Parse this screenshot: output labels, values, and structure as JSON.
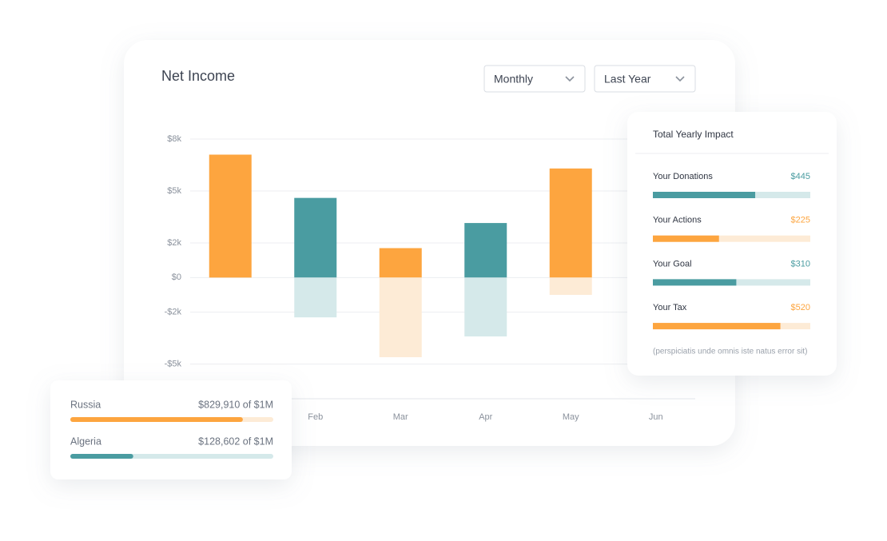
{
  "header": {
    "title": "Net Income",
    "filters": [
      "Monthly",
      "Last Year"
    ]
  },
  "chart_data": {
    "type": "bar",
    "categories": [
      null,
      "Feb",
      "Mar",
      "Apr",
      "May",
      "Jun"
    ],
    "series": [
      {
        "colors": [
          "#fda53f",
          "#4a9ca1",
          "#fda53f",
          "#4a9ca1",
          "#fda53f",
          "#4a9ca1"
        ],
        "values": [
          7100,
          4600,
          1700,
          3150,
          6300,
          null
        ]
      },
      {
        "colors": [
          "#fdebd6",
          "#d5e9ea",
          "#fdebd6",
          "#d5e9ea",
          "#fdebd6",
          "#d5e9ea"
        ],
        "values": [
          null,
          -2300,
          -4600,
          -3400,
          -1000,
          null
        ]
      }
    ],
    "ylim": [
      -7000,
      8000
    ],
    "yticks": [
      {
        "value": 8000,
        "label": "$8k"
      },
      {
        "value": 5000,
        "label": "$5k"
      },
      {
        "value": 2000,
        "label": "$2k"
      },
      {
        "value": 0,
        "label": "$0"
      },
      {
        "value": -2000,
        "label": "-$2k"
      },
      {
        "value": -5000,
        "label": "-$5k"
      }
    ],
    "grid": true
  },
  "impact": {
    "title": "Total Yearly Impact",
    "items": [
      {
        "label": "Your Donations",
        "amount": "$445",
        "progress": 65,
        "color": "#4a9ca1"
      },
      {
        "label": "Your Actions",
        "amount": "$225",
        "progress": 42,
        "color": "#fda53f"
      },
      {
        "label": "Your Goal",
        "amount": "$310",
        "progress": 53,
        "color": "#4a9ca1"
      },
      {
        "label": "Your Tax",
        "amount": "$520",
        "progress": 81,
        "color": "#fda53f"
      }
    ],
    "note": "(perspiciatis unde omnis iste natus error sit)"
  },
  "countries": [
    {
      "name": "Russia",
      "amount": "$829,910 of $1M",
      "progress": 85,
      "color": "#fda53f"
    },
    {
      "name": "Algeria",
      "amount": "$128,602 of $1M",
      "progress": 31,
      "color": "#4a9ca1"
    }
  ]
}
